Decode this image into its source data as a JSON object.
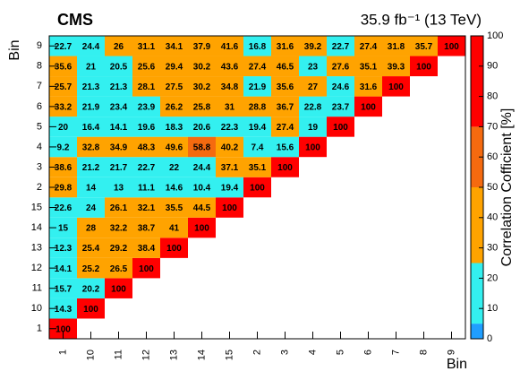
{
  "chart_data": {
    "type": "heatmap",
    "title": "CMS",
    "subtitle": "35.9 fb⁻¹ (13 TeV)",
    "x_label": "Bin",
    "y_label": "Bin",
    "colorbar_label": "Correlation Cofficient [%]",
    "x_categories": [
      "1",
      "10",
      "11",
      "12",
      "13",
      "14",
      "15",
      "2",
      "3",
      "4",
      "5",
      "6",
      "7",
      "8",
      "9"
    ],
    "y_categories": [
      "1",
      "10",
      "11",
      "12",
      "13",
      "14",
      "15",
      "2",
      "3",
      "4",
      "5",
      "6",
      "7",
      "8",
      "9"
    ],
    "z": [
      [
        100,
        null,
        null,
        null,
        null,
        null,
        null,
        null,
        null,
        null,
        null,
        null,
        null,
        null,
        null
      ],
      [
        14.3,
        100,
        null,
        null,
        null,
        null,
        null,
        null,
        null,
        null,
        null,
        null,
        null,
        null,
        null
      ],
      [
        15.7,
        20.2,
        100,
        null,
        null,
        null,
        null,
        null,
        null,
        null,
        null,
        null,
        null,
        null,
        null
      ],
      [
        14.1,
        25.2,
        26.5,
        100,
        null,
        null,
        null,
        null,
        null,
        null,
        null,
        null,
        null,
        null,
        null
      ],
      [
        12.3,
        25.4,
        29.2,
        38.4,
        100,
        null,
        null,
        null,
        null,
        null,
        null,
        null,
        null,
        null,
        null
      ],
      [
        15,
        28,
        32.2,
        38.7,
        41,
        100,
        null,
        null,
        null,
        null,
        null,
        null,
        null,
        null,
        null
      ],
      [
        22.6,
        24,
        26.1,
        32.1,
        35.5,
        44.5,
        100,
        null,
        null,
        null,
        null,
        null,
        null,
        null,
        null
      ],
      [
        29.8,
        14,
        13,
        11.1,
        14.6,
        10.4,
        19.4,
        100,
        null,
        null,
        null,
        null,
        null,
        null,
        null
      ],
      [
        38.6,
        21.2,
        21.7,
        22.7,
        22,
        24.4,
        37.1,
        35.1,
        100,
        null,
        null,
        null,
        null,
        null,
        null
      ],
      [
        9.2,
        32.8,
        34.9,
        48.3,
        49.6,
        58.8,
        40.2,
        7.4,
        15.6,
        100,
        null,
        null,
        null,
        null,
        null
      ],
      [
        20,
        16.4,
        14.1,
        19.6,
        18.3,
        20.6,
        22.3,
        19.4,
        27.4,
        19,
        100,
        null,
        null,
        null,
        null
      ],
      [
        33.2,
        21.9,
        23.4,
        23.9,
        26.2,
        25.8,
        31,
        28.8,
        36.7,
        22.8,
        23.7,
        100,
        null,
        null,
        null
      ],
      [
        25.7,
        21.3,
        21.3,
        28.1,
        27.5,
        30.2,
        34.8,
        21.9,
        35.6,
        27,
        24.6,
        31.6,
        100,
        null,
        null
      ],
      [
        35.6,
        21,
        20.5,
        25.6,
        29.4,
        30.2,
        43.6,
        27.4,
        46.5,
        23,
        27.6,
        35.1,
        39.3,
        100,
        null
      ],
      [
        22.7,
        24.4,
        26,
        31.1,
        34.1,
        37.9,
        41.6,
        16.8,
        31.6,
        39.2,
        22.7,
        27.4,
        31.8,
        35.7,
        100
      ]
    ],
    "zlim": [
      0,
      100
    ],
    "zticks": [
      0,
      10,
      20,
      30,
      40,
      50,
      60,
      70,
      80,
      90,
      100
    ],
    "color_bands": [
      {
        "from": 0,
        "to": 5,
        "color": "#1f9eff"
      },
      {
        "from": 5,
        "to": 25,
        "color": "#33f0f0"
      },
      {
        "from": 25,
        "to": 50,
        "color": "#ffa300"
      },
      {
        "from": 50,
        "to": 70,
        "color": "#f56a0f"
      },
      {
        "from": 70,
        "to": 100,
        "color": "#ff0000"
      }
    ]
  }
}
